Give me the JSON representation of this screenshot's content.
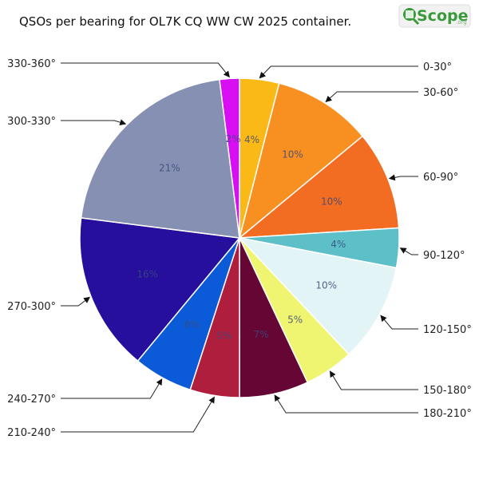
{
  "logo": {
    "text": "Scope",
    "suffix": ".org"
  },
  "chart_data": {
    "type": "pie",
    "title": "QSOs per bearing for OL7K CQ WW CW 2025 container.",
    "slices": [
      {
        "label": "0-30°",
        "value": 4,
        "pct_label": "4%",
        "color": "#fbb917"
      },
      {
        "label": "30-60°",
        "value": 10,
        "pct_label": "10%",
        "color": "#f78f21"
      },
      {
        "label": "60-90°",
        "value": 10,
        "pct_label": "10%",
        "color": "#f26c21"
      },
      {
        "label": "90-120°",
        "value": 4,
        "pct_label": "4%",
        "color": "#5dc0c9"
      },
      {
        "label": "120-150°",
        "value": 10,
        "pct_label": "10%",
        "color": "#e3f4f6"
      },
      {
        "label": "150-180°",
        "value": 5,
        "pct_label": "5%",
        "color": "#eff570"
      },
      {
        "label": "180-210°",
        "value": 7,
        "pct_label": "7%",
        "color": "#650634"
      },
      {
        "label": "210-240°",
        "value": 5,
        "pct_label": "5%",
        "color": "#b01e3d"
      },
      {
        "label": "240-270°",
        "value": 6,
        "pct_label": "6%",
        "color": "#0b5bd8"
      },
      {
        "label": "270-300°",
        "value": 16,
        "pct_label": "16%",
        "color": "#270f9e"
      },
      {
        "label": "300-330°",
        "value": 21,
        "pct_label": "21%",
        "color": "#8690b3"
      },
      {
        "label": "330-360°",
        "value": 2,
        "pct_label": "2%",
        "color": "#d70ff2"
      }
    ]
  }
}
